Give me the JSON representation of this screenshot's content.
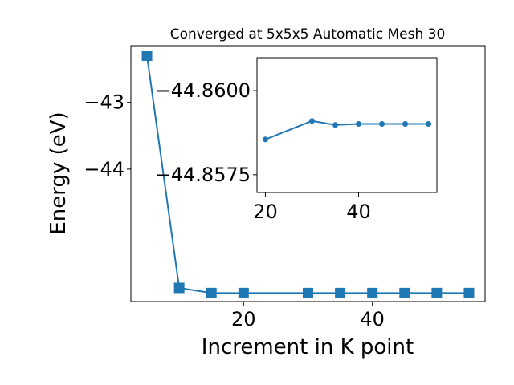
{
  "chart_data": [
    {
      "type": "line",
      "title": "Converged at 5x5x5 Automatic Mesh 30",
      "xlabel": "Increment in K point",
      "ylabel": "Energy (eV)",
      "xlim": [
        2.5,
        57.5
      ],
      "ylim": [
        -45.985,
        -42.15
      ],
      "x_ticks": [
        20,
        40
      ],
      "y_ticks": [
        -43,
        -44
      ],
      "y_tick_labels": [
        "−43",
        "−44"
      ],
      "grid": false,
      "marker": "square",
      "color": "#1f77b4",
      "series": [
        {
          "x": [
            5,
            10,
            15,
            20,
            30,
            35,
            40,
            45,
            50,
            55
          ],
          "y": [
            -42.3,
            -45.78,
            -45.857,
            -45.857,
            -45.857,
            -45.857,
            -45.857,
            -45.857,
            -45.857,
            -45.857
          ]
        }
      ]
    },
    {
      "type": "line",
      "title": "",
      "xlim": [
        18.2,
        56.8
      ],
      "ylim": [
        -44.85697,
        -44.86098
      ],
      "x_ticks": [
        20,
        40
      ],
      "y_ticks": [
        -44.86,
        -44.8575
      ],
      "y_tick_labels": [
        "−44.8600",
        "−44.8575"
      ],
      "grid": false,
      "marker": "circle",
      "color": "#1f77b4",
      "series": [
        {
          "x": [
            20,
            30,
            35,
            40,
            45,
            50,
            55
          ],
          "y": [
            -44.85855,
            -44.8591,
            -44.85898,
            -44.85901,
            -44.85901,
            -44.85901,
            -44.85901
          ]
        }
      ]
    }
  ]
}
